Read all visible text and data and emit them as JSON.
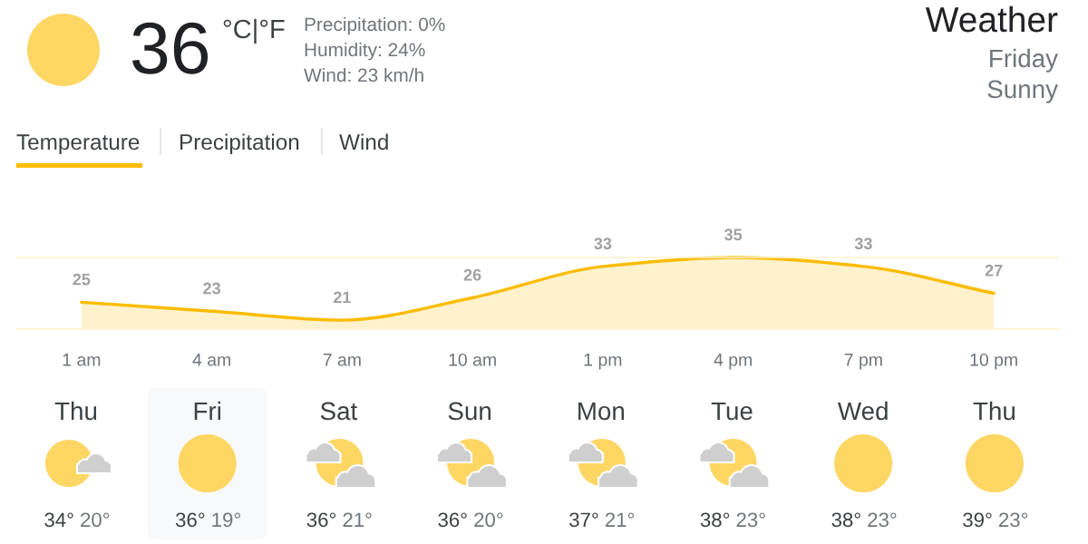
{
  "chart_data": {
    "type": "area",
    "title": "Weather",
    "categories": [
      "1 am",
      "4 am",
      "7 am",
      "10 am",
      "1 pm",
      "4 pm",
      "7 pm",
      "10 pm"
    ],
    "values": [
      25,
      23,
      21,
      26,
      33,
      35,
      33,
      27
    ],
    "color": "#fbbc04",
    "data_labels": true,
    "tick_labels": "x",
    "ylim": [
      19,
      35
    ],
    "annotations": [
      "36",
      "°C|°F",
      "Precipitation: 0%",
      "Humidity: 24%",
      "Wind: 23 km/h",
      "Friday",
      "Sunny",
      "Temperature",
      "Precipitation",
      "Wind",
      "Thu",
      "34°",
      "20°",
      "Fri",
      "36°",
      "19°",
      "Sat",
      "36°",
      "21°",
      "Sun",
      "36°",
      "20°",
      "Mon",
      "37°",
      "21°",
      "Tue",
      "38°",
      "23°",
      "Wed",
      "38°",
      "23°",
      "Thu",
      "39°",
      "23°"
    ]
  }
}
